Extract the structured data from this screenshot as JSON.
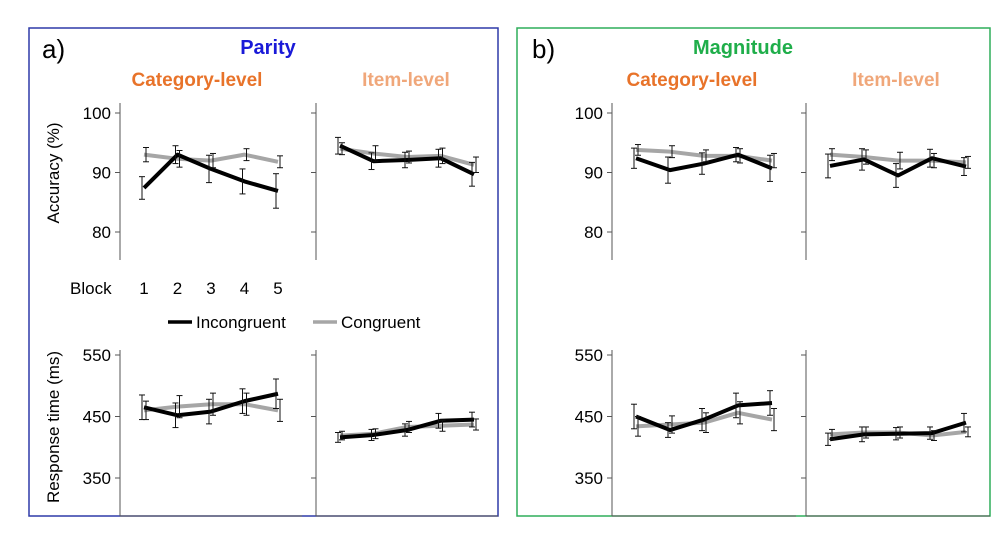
{
  "panels": [
    {
      "letter": "a)",
      "title": "Parity",
      "title_color": "#1a1ad8",
      "border_color": "#2e3aa8",
      "col_titles": [
        "Category-level",
        "Item-level"
      ]
    },
    {
      "letter": "b)",
      "title": "Magnitude",
      "title_color": "#1fae4a",
      "border_color": "#2fae5a",
      "col_titles": [
        "Category-level",
        "Item-level"
      ]
    }
  ],
  "col_title_colors": [
    "#e8732a",
    "#f0a77a"
  ],
  "accuracy_axis": {
    "label": "Accuracy (%)",
    "ticks": [
      100,
      90,
      80
    ],
    "ylim": [
      75,
      105
    ]
  },
  "rt_axis": {
    "label": "Response time (ms)",
    "ticks": [
      550,
      450,
      350
    ],
    "ylim": [
      300,
      580
    ]
  },
  "block_axis": {
    "label": "Block",
    "ticks": [
      "1",
      "2",
      "3",
      "4",
      "5"
    ]
  },
  "legend": [
    {
      "name": "Incongruent",
      "color": "#000000"
    },
    {
      "name": "Congruent",
      "color": "#a6a6a6"
    }
  ],
  "chart_data": [
    {
      "type": "line",
      "panel": "Parity",
      "measure": "Accuracy (%)",
      "column": "Category-level",
      "x": [
        1,
        2,
        3,
        4,
        5
      ],
      "series": [
        {
          "name": "Incongruent",
          "values": [
            87.4,
            93.0,
            90.6,
            88.5,
            86.9
          ],
          "err": [
            1.9,
            1.5,
            2.3,
            2.1,
            2.9
          ]
        },
        {
          "name": "Congruent",
          "values": [
            93.0,
            92.3,
            92.0,
            93.0,
            91.8
          ],
          "err": [
            1.2,
            1.4,
            1.2,
            1.0,
            1.0
          ]
        }
      ]
    },
    {
      "type": "line",
      "panel": "Parity",
      "measure": "Accuracy (%)",
      "column": "Item-level",
      "x": [
        1,
        2,
        3,
        4,
        5
      ],
      "series": [
        {
          "name": "Incongruent",
          "values": [
            94.5,
            91.9,
            92.1,
            92.4,
            89.7
          ],
          "err": [
            1.4,
            1.4,
            1.3,
            1.5,
            2.0
          ]
        },
        {
          "name": "Congruent",
          "values": [
            94.0,
            93.2,
            92.6,
            92.8,
            91.3
          ],
          "err": [
            1.0,
            1.3,
            1.0,
            1.3,
            1.3
          ]
        }
      ]
    },
    {
      "type": "line",
      "panel": "Parity",
      "measure": "Response time (ms)",
      "column": "Category-level",
      "x": [
        1,
        2,
        3,
        4,
        5
      ],
      "series": [
        {
          "name": "Incongruent",
          "values": [
            465,
            452,
            458,
            475,
            487
          ],
          "err": [
            20,
            20,
            20,
            20,
            24
          ]
        },
        {
          "name": "Congruent",
          "values": [
            460,
            466,
            470,
            470,
            460
          ],
          "err": [
            15,
            18,
            18,
            18,
            18
          ]
        }
      ]
    },
    {
      "type": "line",
      "panel": "Parity",
      "measure": "Response time (ms)",
      "column": "Item-level",
      "x": [
        1,
        2,
        3,
        4,
        5
      ],
      "series": [
        {
          "name": "Incongruent",
          "values": [
            416,
            420,
            428,
            443,
            445
          ],
          "err": [
            8,
            9,
            10,
            12,
            12
          ]
        },
        {
          "name": "Congruent",
          "values": [
            419,
            422,
            433,
            435,
            437
          ],
          "err": [
            7,
            8,
            9,
            9,
            9
          ]
        }
      ]
    },
    {
      "type": "line",
      "panel": "Magnitude",
      "measure": "Accuracy (%)",
      "column": "Category-level",
      "x": [
        1,
        2,
        3,
        4,
        5
      ],
      "series": [
        {
          "name": "Incongruent",
          "values": [
            92.4,
            90.4,
            91.5,
            93.0,
            90.7
          ],
          "err": [
            1.7,
            2.2,
            1.8,
            1.2,
            2.2
          ]
        },
        {
          "name": "Congruent",
          "values": [
            93.8,
            93.5,
            92.8,
            92.8,
            92.0
          ],
          "err": [
            0.9,
            1.0,
            1.0,
            1.2,
            1.2
          ]
        }
      ]
    },
    {
      "type": "line",
      "panel": "Magnitude",
      "measure": "Accuracy (%)",
      "column": "Item-level",
      "x": [
        1,
        2,
        3,
        4,
        5
      ],
      "series": [
        {
          "name": "Incongruent",
          "values": [
            91.1,
            92.2,
            89.5,
            92.4,
            91.0
          ],
          "err": [
            2.0,
            1.8,
            2.0,
            1.5,
            1.5
          ]
        },
        {
          "name": "Congruent",
          "values": [
            93.0,
            92.6,
            92.0,
            92.0,
            91.7
          ],
          "err": [
            1.0,
            1.2,
            1.4,
            1.2,
            1.0
          ]
        }
      ]
    },
    {
      "type": "line",
      "panel": "Magnitude",
      "measure": "Response time (ms)",
      "column": "Category-level",
      "x": [
        1,
        2,
        3,
        4,
        5
      ],
      "series": [
        {
          "name": "Incongruent",
          "values": [
            450,
            428,
            445,
            468,
            472
          ],
          "err": [
            20,
            12,
            18,
            20,
            20
          ]
        },
        {
          "name": "Congruent",
          "values": [
            434,
            437,
            440,
            456,
            445
          ],
          "err": [
            16,
            14,
            16,
            18,
            18
          ]
        }
      ]
    },
    {
      "type": "line",
      "panel": "Magnitude",
      "measure": "Response time (ms)",
      "column": "Item-level",
      "x": [
        1,
        2,
        3,
        4,
        5
      ],
      "series": [
        {
          "name": "Incongruent",
          "values": [
            413,
            421,
            422,
            423,
            440
          ],
          "err": [
            10,
            12,
            10,
            10,
            15
          ]
        },
        {
          "name": "Congruent",
          "values": [
            421,
            424,
            424,
            419,
            425
          ],
          "err": [
            8,
            9,
            9,
            8,
            8
          ]
        }
      ]
    }
  ]
}
